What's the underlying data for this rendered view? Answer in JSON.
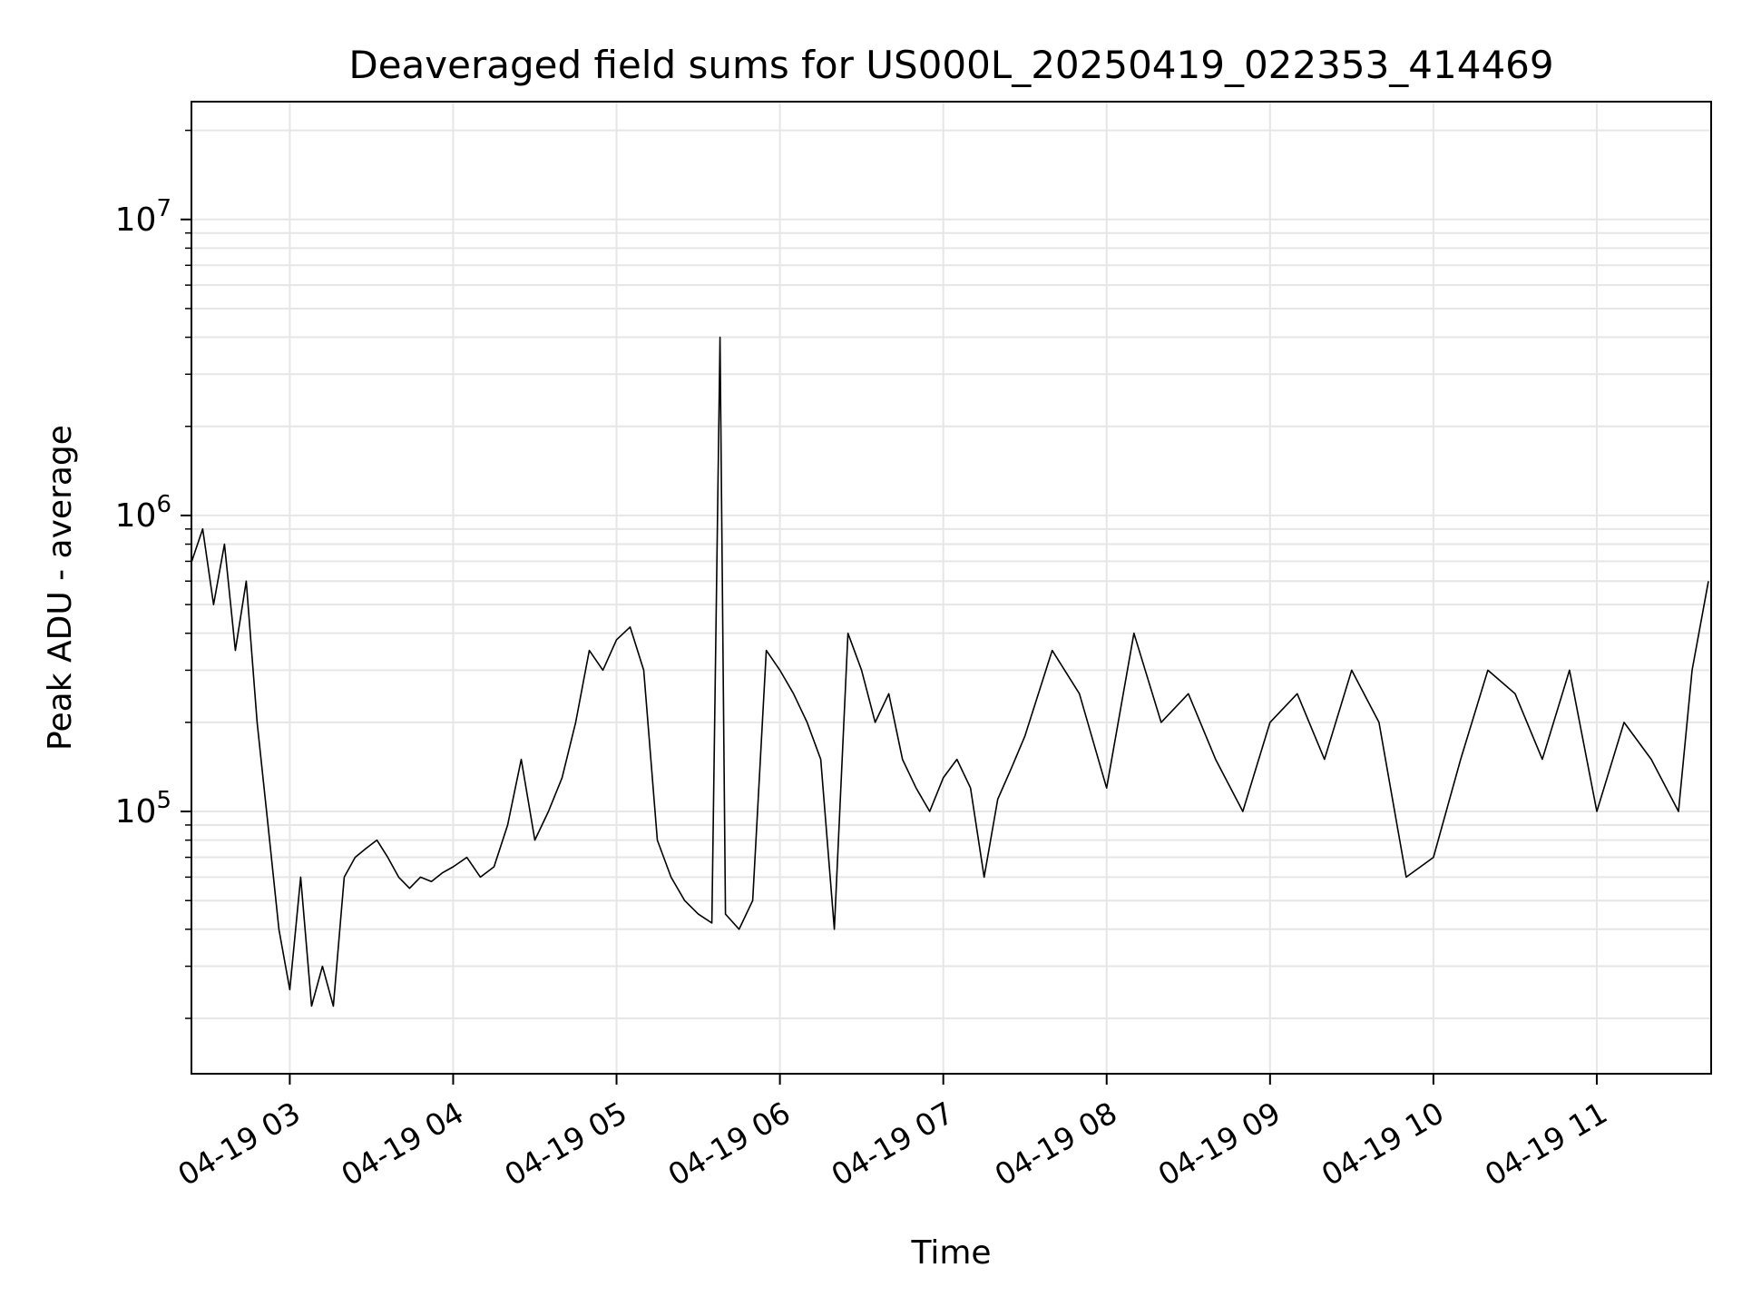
{
  "chart_data": {
    "type": "line",
    "title": "Deaveraged field sums for US000L_20250419_022353_414469",
    "xlabel": "Time",
    "ylabel": "Peak ADU - average",
    "yscale": "log",
    "ylim": [
      13000,
      25000000
    ],
    "xlim": [
      "2025-04-19T02:23:53",
      "2025-04-19T11:42:00"
    ],
    "grid": true,
    "line_color": "#000000",
    "grid_color": "#e6e6e6",
    "x_ticks": [
      {
        "value": "2025-04-19T03:00",
        "label": "04-19 03"
      },
      {
        "value": "2025-04-19T04:00",
        "label": "04-19 04"
      },
      {
        "value": "2025-04-19T05:00",
        "label": "04-19 05"
      },
      {
        "value": "2025-04-19T06:00",
        "label": "04-19 06"
      },
      {
        "value": "2025-04-19T07:00",
        "label": "04-19 07"
      },
      {
        "value": "2025-04-19T08:00",
        "label": "04-19 08"
      },
      {
        "value": "2025-04-19T09:00",
        "label": "04-19 09"
      },
      {
        "value": "2025-04-19T10:00",
        "label": "04-19 10"
      },
      {
        "value": "2025-04-19T11:00",
        "label": "04-19 11"
      }
    ],
    "y_ticks": [
      {
        "value": 100000,
        "mantissa": "10",
        "exponent": "5"
      },
      {
        "value": 1000000,
        "mantissa": "10",
        "exponent": "6"
      },
      {
        "value": 10000000,
        "mantissa": "10",
        "exponent": "7"
      }
    ],
    "series": [
      {
        "points": [
          [
            "2025-04-19T02:24",
            700000
          ],
          [
            "2025-04-19T02:28",
            900000
          ],
          [
            "2025-04-19T02:32",
            500000
          ],
          [
            "2025-04-19T02:36",
            800000
          ],
          [
            "2025-04-19T02:40",
            350000
          ],
          [
            "2025-04-19T02:44",
            600000
          ],
          [
            "2025-04-19T02:48",
            200000
          ],
          [
            "2025-04-19T02:52",
            90000
          ],
          [
            "2025-04-19T02:56",
            40000
          ],
          [
            "2025-04-19T03:00",
            25000
          ],
          [
            "2025-04-19T03:04",
            60000
          ],
          [
            "2025-04-19T03:08",
            22000
          ],
          [
            "2025-04-19T03:12",
            30000
          ],
          [
            "2025-04-19T03:16",
            22000
          ],
          [
            "2025-04-19T03:20",
            60000
          ],
          [
            "2025-04-19T03:24",
            70000
          ],
          [
            "2025-04-19T03:28",
            75000
          ],
          [
            "2025-04-19T03:32",
            80000
          ],
          [
            "2025-04-19T03:36",
            70000
          ],
          [
            "2025-04-19T03:40",
            60000
          ],
          [
            "2025-04-19T03:44",
            55000
          ],
          [
            "2025-04-19T03:48",
            60000
          ],
          [
            "2025-04-19T03:52",
            58000
          ],
          [
            "2025-04-19T03:56",
            62000
          ],
          [
            "2025-04-19T04:00",
            65000
          ],
          [
            "2025-04-19T04:05",
            70000
          ],
          [
            "2025-04-19T04:10",
            60000
          ],
          [
            "2025-04-19T04:15",
            65000
          ],
          [
            "2025-04-19T04:20",
            90000
          ],
          [
            "2025-04-19T04:25",
            150000
          ],
          [
            "2025-04-19T04:30",
            80000
          ],
          [
            "2025-04-19T04:35",
            100000
          ],
          [
            "2025-04-19T04:40",
            130000
          ],
          [
            "2025-04-19T04:45",
            200000
          ],
          [
            "2025-04-19T04:50",
            350000
          ],
          [
            "2025-04-19T04:55",
            300000
          ],
          [
            "2025-04-19T05:00",
            380000
          ],
          [
            "2025-04-19T05:05",
            420000
          ],
          [
            "2025-04-19T05:10",
            300000
          ],
          [
            "2025-04-19T05:15",
            80000
          ],
          [
            "2025-04-19T05:20",
            60000
          ],
          [
            "2025-04-19T05:25",
            50000
          ],
          [
            "2025-04-19T05:30",
            45000
          ],
          [
            "2025-04-19T05:35",
            42000
          ],
          [
            "2025-04-19T05:38",
            4000000
          ],
          [
            "2025-04-19T05:40",
            45000
          ],
          [
            "2025-04-19T05:45",
            40000
          ],
          [
            "2025-04-19T05:50",
            50000
          ],
          [
            "2025-04-19T05:55",
            350000
          ],
          [
            "2025-04-19T06:00",
            300000
          ],
          [
            "2025-04-19T06:05",
            250000
          ],
          [
            "2025-04-19T06:10",
            200000
          ],
          [
            "2025-04-19T06:15",
            150000
          ],
          [
            "2025-04-19T06:20",
            40000
          ],
          [
            "2025-04-19T06:25",
            400000
          ],
          [
            "2025-04-19T06:30",
            300000
          ],
          [
            "2025-04-19T06:35",
            200000
          ],
          [
            "2025-04-19T06:40",
            250000
          ],
          [
            "2025-04-19T06:45",
            150000
          ],
          [
            "2025-04-19T06:50",
            120000
          ],
          [
            "2025-04-19T06:55",
            100000
          ],
          [
            "2025-04-19T07:00",
            130000
          ],
          [
            "2025-04-19T07:05",
            150000
          ],
          [
            "2025-04-19T07:10",
            120000
          ],
          [
            "2025-04-19T07:15",
            60000
          ],
          [
            "2025-04-19T07:20",
            110000
          ],
          [
            "2025-04-19T07:25",
            140000
          ],
          [
            "2025-04-19T07:30",
            180000
          ],
          [
            "2025-04-19T07:40",
            350000
          ],
          [
            "2025-04-19T07:50",
            250000
          ],
          [
            "2025-04-19T08:00",
            120000
          ],
          [
            "2025-04-19T08:10",
            400000
          ],
          [
            "2025-04-19T08:20",
            200000
          ],
          [
            "2025-04-19T08:30",
            250000
          ],
          [
            "2025-04-19T08:40",
            150000
          ],
          [
            "2025-04-19T08:50",
            100000
          ],
          [
            "2025-04-19T09:00",
            200000
          ],
          [
            "2025-04-19T09:10",
            250000
          ],
          [
            "2025-04-19T09:20",
            150000
          ],
          [
            "2025-04-19T09:30",
            300000
          ],
          [
            "2025-04-19T09:40",
            200000
          ],
          [
            "2025-04-19T09:50",
            60000
          ],
          [
            "2025-04-19T10:00",
            70000
          ],
          [
            "2025-04-19T10:10",
            150000
          ],
          [
            "2025-04-19T10:20",
            300000
          ],
          [
            "2025-04-19T10:30",
            250000
          ],
          [
            "2025-04-19T10:40",
            150000
          ],
          [
            "2025-04-19T10:50",
            300000
          ],
          [
            "2025-04-19T11:00",
            100000
          ],
          [
            "2025-04-19T11:10",
            200000
          ],
          [
            "2025-04-19T11:20",
            150000
          ],
          [
            "2025-04-19T11:30",
            100000
          ],
          [
            "2025-04-19T11:35",
            300000
          ],
          [
            "2025-04-19T11:41",
            600000
          ]
        ]
      }
    ]
  }
}
